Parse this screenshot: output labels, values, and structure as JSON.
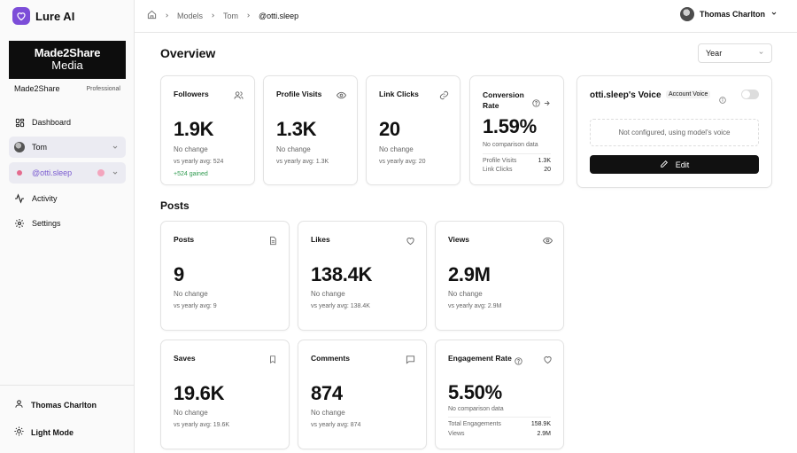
{
  "app": {
    "name": "Lure AI",
    "accent": "#7c4dd8"
  },
  "workspace": {
    "logo_line1": "Made2Share",
    "logo_line2": "Media",
    "name": "Made2Share",
    "plan": "Professional"
  },
  "sidebar": {
    "items": [
      {
        "label": "Dashboard",
        "icon": "grid-icon"
      },
      {
        "label": "Tom",
        "icon": "avatar"
      },
      {
        "label": "@otti.sleep",
        "icon": "dot"
      },
      {
        "label": "Activity",
        "icon": "activity-icon"
      },
      {
        "label": "Settings",
        "icon": "gear-icon"
      }
    ],
    "footer": {
      "user": "Thomas Charlton",
      "theme": "Light Mode"
    }
  },
  "topbar": {
    "breadcrumbs": [
      "Models",
      "Tom",
      "@otti.sleep"
    ],
    "user_name": "Thomas Charlton"
  },
  "overview": {
    "title": "Overview",
    "period": "Year",
    "cards": {
      "followers": {
        "title": "Followers",
        "value": "1.9K",
        "change": "No change",
        "avg": "vs yearly avg: 524",
        "gained": "+524 gained"
      },
      "profile_visits": {
        "title": "Profile Visits",
        "value": "1.3K",
        "change": "No change",
        "avg": "vs yearly avg: 1.3K"
      },
      "link_clicks": {
        "title": "Link Clicks",
        "value": "20",
        "change": "No change",
        "avg": "vs yearly avg: 20"
      },
      "conversion": {
        "title": "Conversion Rate",
        "value": "1.59%",
        "change": "No comparison data",
        "rows": [
          {
            "label": "Profile Visits",
            "value": "1.3K"
          },
          {
            "label": "Link Clicks",
            "value": "20"
          }
        ]
      }
    },
    "voice": {
      "title": "otti.sleep's Voice",
      "badge": "Account Voice",
      "status": "Not configured, using model's voice",
      "edit_label": "Edit"
    }
  },
  "posts": {
    "title": "Posts",
    "cards": {
      "posts": {
        "title": "Posts",
        "value": "9",
        "change": "No change",
        "avg": "vs yearly avg: 9"
      },
      "likes": {
        "title": "Likes",
        "value": "138.4K",
        "change": "No change",
        "avg": "vs yearly avg: 138.4K"
      },
      "views": {
        "title": "Views",
        "value": "2.9M",
        "change": "No change",
        "avg": "vs yearly avg: 2.9M"
      },
      "saves": {
        "title": "Saves",
        "value": "19.6K",
        "change": "No change",
        "avg": "vs yearly avg: 19.6K"
      },
      "comments": {
        "title": "Comments",
        "value": "874",
        "change": "No change",
        "avg": "vs yearly avg: 874"
      },
      "engagement": {
        "title": "Engagement Rate",
        "value": "5.50%",
        "change": "No comparison data",
        "rows": [
          {
            "label": "Total Engagements",
            "value": "158.9K"
          },
          {
            "label": "Views",
            "value": "2.9M"
          }
        ]
      }
    }
  }
}
